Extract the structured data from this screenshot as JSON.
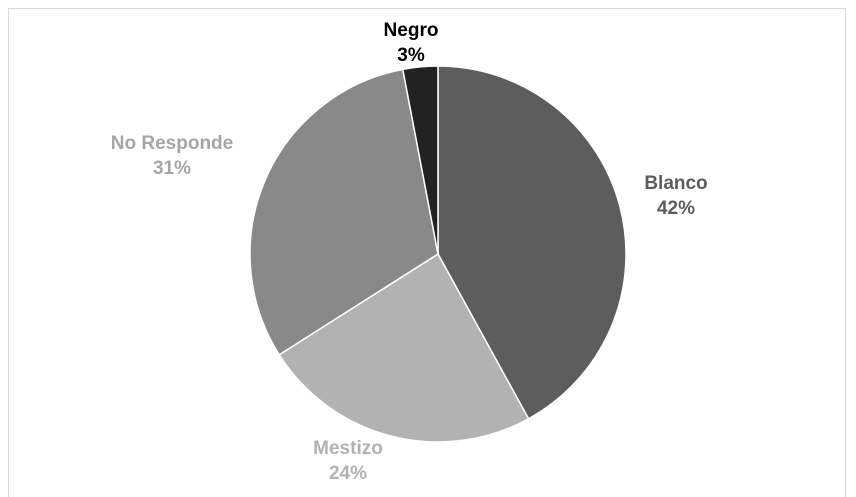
{
  "chart_data": {
    "type": "pie",
    "slices": [
      {
        "name": "Blanco",
        "value": 42,
        "percent": "42%",
        "color": "#5d5d5d",
        "label_color": "#5d5d5d"
      },
      {
        "name": "Mestizo",
        "value": 24,
        "percent": "24%",
        "color": "#b2b2b2",
        "label_color": "#b2b2b2"
      },
      {
        "name": "No Responde",
        "value": 31,
        "percent": "31%",
        "color": "#898989",
        "label_color": "#a6a6a6"
      },
      {
        "name": "Negro",
        "value": 3,
        "percent": "3%",
        "color": "#222222",
        "label_color": "#000000"
      }
    ],
    "start_angle_deg": 0,
    "direction": "clockwise",
    "legend": "none"
  }
}
